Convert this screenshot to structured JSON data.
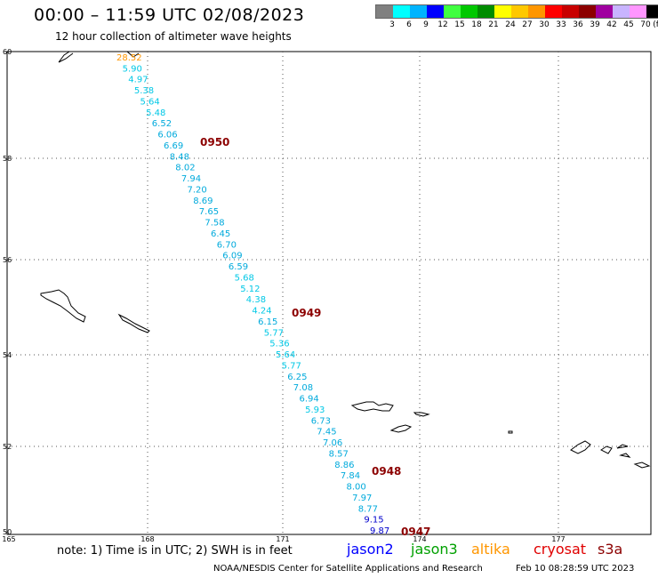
{
  "header": {
    "title": "00:00 – 11:59 UTC 02/08/2023",
    "subtitle": "12 hour collection of altimeter wave heights"
  },
  "legend": {
    "colors": [
      "#808080",
      "#00ffff",
      "#00b4ff",
      "#0000ff",
      "#40ff40",
      "#00c800",
      "#008c00",
      "#ffff00",
      "#ffc800",
      "#ff9600",
      "#ff0000",
      "#c80000",
      "#8c0000",
      "#a000a0",
      "#c8b4ff",
      "#ff96ff",
      "#000000"
    ],
    "labels": [
      "3",
      "6",
      "9",
      "12",
      "15",
      "18",
      "21",
      "24",
      "27",
      "30",
      "33",
      "36",
      "39",
      "42",
      "45",
      "70",
      "(ft)"
    ]
  },
  "axes": {
    "lat_labels": [
      "60",
      "58",
      "56",
      "54",
      "52",
      "50"
    ],
    "lon_labels": [
      "165",
      "168",
      "171",
      "174",
      "177"
    ]
  },
  "track": {
    "values": [
      {
        "v": "28.52",
        "c": "#ff9600"
      },
      {
        "v": "5.90",
        "c": "#00c8e6"
      },
      {
        "v": "4.97",
        "c": "#00c8e6"
      },
      {
        "v": "5.38",
        "c": "#00c8e6"
      },
      {
        "v": "5.64",
        "c": "#00c8e6"
      },
      {
        "v": "5.48",
        "c": "#00c8e6"
      },
      {
        "v": "6.52",
        "c": "#00aadc"
      },
      {
        "v": "6.06",
        "c": "#00aadc"
      },
      {
        "v": "6.69",
        "c": "#00aadc"
      },
      {
        "v": "8.48",
        "c": "#00aadc"
      },
      {
        "v": "8.02",
        "c": "#00aadc"
      },
      {
        "v": "7.94",
        "c": "#00aadc"
      },
      {
        "v": "7.20",
        "c": "#00aadc"
      },
      {
        "v": "8.69",
        "c": "#00aadc"
      },
      {
        "v": "7.65",
        "c": "#00aadc"
      },
      {
        "v": "7.58",
        "c": "#00aadc"
      },
      {
        "v": "6.45",
        "c": "#00aadc"
      },
      {
        "v": "6.70",
        "c": "#00aadc"
      },
      {
        "v": "6.09",
        "c": "#00aadc"
      },
      {
        "v": "6.59",
        "c": "#00aadc"
      },
      {
        "v": "5.68",
        "c": "#00c8e6"
      },
      {
        "v": "5.12",
        "c": "#00c8e6"
      },
      {
        "v": "4.38",
        "c": "#00c8e6"
      },
      {
        "v": "4.24",
        "c": "#00c8e6"
      },
      {
        "v": "6.15",
        "c": "#00aadc"
      },
      {
        "v": "5.77",
        "c": "#00c8e6"
      },
      {
        "v": "5.36",
        "c": "#00c8e6"
      },
      {
        "v": "5.64",
        "c": "#00c8e6"
      },
      {
        "v": "5.77",
        "c": "#00c8e6"
      },
      {
        "v": "6.25",
        "c": "#00aadc"
      },
      {
        "v": "7.08",
        "c": "#00aadc"
      },
      {
        "v": "6.94",
        "c": "#00aadc"
      },
      {
        "v": "5.93",
        "c": "#00c8e6"
      },
      {
        "v": "6.73",
        "c": "#00aadc"
      },
      {
        "v": "7.45",
        "c": "#00aadc"
      },
      {
        "v": "7.06",
        "c": "#00aadc"
      },
      {
        "v": "8.57",
        "c": "#00aadc"
      },
      {
        "v": "8.86",
        "c": "#00aadc"
      },
      {
        "v": "7.84",
        "c": "#00aadc"
      },
      {
        "v": "8.00",
        "c": "#00aadc"
      },
      {
        "v": "7.97",
        "c": "#00aadc"
      },
      {
        "v": "8.77",
        "c": "#00aadc"
      },
      {
        "v": "9.15",
        "c": "#0000cc"
      },
      {
        "v": "9.87",
        "c": "#0000cc"
      }
    ],
    "time_stamps": [
      "0950",
      "0949",
      "0948",
      "0947"
    ],
    "time_color": "#8c0000"
  },
  "footer": {
    "note": "note: 1) Time is in UTC; 2) SWH is in feet",
    "satellites": [
      {
        "name": "jason2",
        "color": "#0000ff"
      },
      {
        "name": "jason3",
        "color": "#00a000"
      },
      {
        "name": "altika",
        "color": "#ff9600"
      },
      {
        "name": "cryosat",
        "color": "#e00000"
      },
      {
        "name": "s3a",
        "color": "#8c0000"
      }
    ],
    "credit": "NOAA/NESDIS Center for Satellite Applications and Research",
    "generated": "Feb 10 08:28:59 UTC 2023"
  }
}
